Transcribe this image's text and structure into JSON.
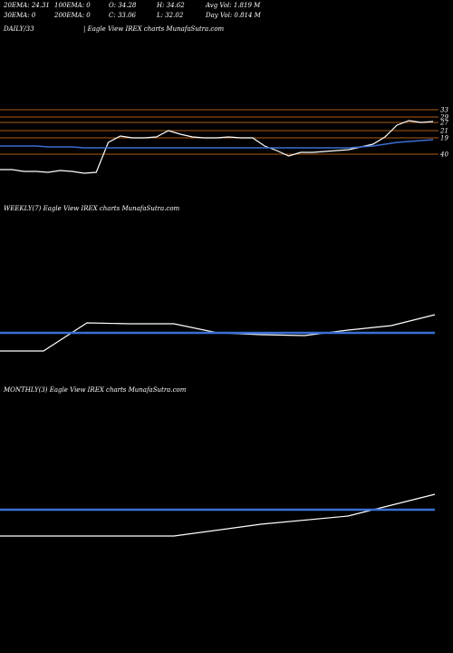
{
  "header": {
    "ema20": "20EMA: 24.31",
    "ema100": "100EMA: 0",
    "open": "O: 34.28",
    "high": "H: 34.62",
    "avgvol": "Avg Vol: 1.819 M",
    "ema30": "30EMA: 0",
    "ema200": "200EMA: 0",
    "close": "C: 33.06",
    "low": "L: 32.02",
    "dayvol": "Day Vol: 0.814  M"
  },
  "panels": {
    "daily": "DAILY/33",
    "daily_caption": "| Eagle   View  IREX  charts MunafaSutra.com",
    "weekly": "WEEKLY(7) Eagle   View  IREX  charts MunafaSutra.com",
    "monthly": "MONTHLY(3) Eagle   View  IREX  charts MunafaSutra.com"
  },
  "colors": {
    "background": "#000000",
    "price_line": "#ffffff",
    "ema_line": "#3b6fd4",
    "level_line": "#8b4a12"
  },
  "chart_data": [
    {
      "type": "line",
      "name": "daily",
      "y_levels": [
        "33",
        "29",
        "27",
        "21",
        "19",
        "40"
      ],
      "series": [
        {
          "values": [
            13,
            13,
            11,
            11,
            10,
            12,
            11,
            9,
            10,
            43,
            50,
            48,
            48,
            49,
            56,
            52,
            49,
            48,
            48,
            49,
            48,
            48,
            39,
            34,
            28,
            32,
            32,
            33,
            34,
            35,
            38,
            41,
            49,
            62,
            67,
            65,
            66
          ]
        },
        {
          "values": [
            39,
            39,
            39,
            39,
            38,
            38,
            38,
            37,
            37,
            37,
            37,
            37,
            37,
            37,
            37,
            37,
            37,
            37,
            37,
            37,
            37,
            37,
            37,
            37,
            37,
            37,
            37,
            37,
            37,
            37,
            38,
            39,
            41,
            43,
            44,
            45,
            46
          ]
        }
      ]
    },
    {
      "type": "line",
      "name": "weekly",
      "series": [
        {
          "values": [
            13,
            13,
            44,
            43,
            43,
            33,
            31,
            30,
            36,
            41,
            53
          ]
        },
        {
          "values": [
            33,
            33,
            33,
            33,
            33,
            33,
            33,
            33,
            33,
            33,
            33
          ]
        }
      ]
    },
    {
      "type": "line",
      "name": "monthly",
      "series": [
        {
          "values": [
            9,
            9,
            9,
            22,
            31,
            55
          ]
        },
        {
          "values": [
            38,
            38,
            38,
            38,
            38,
            38
          ]
        }
      ]
    }
  ]
}
